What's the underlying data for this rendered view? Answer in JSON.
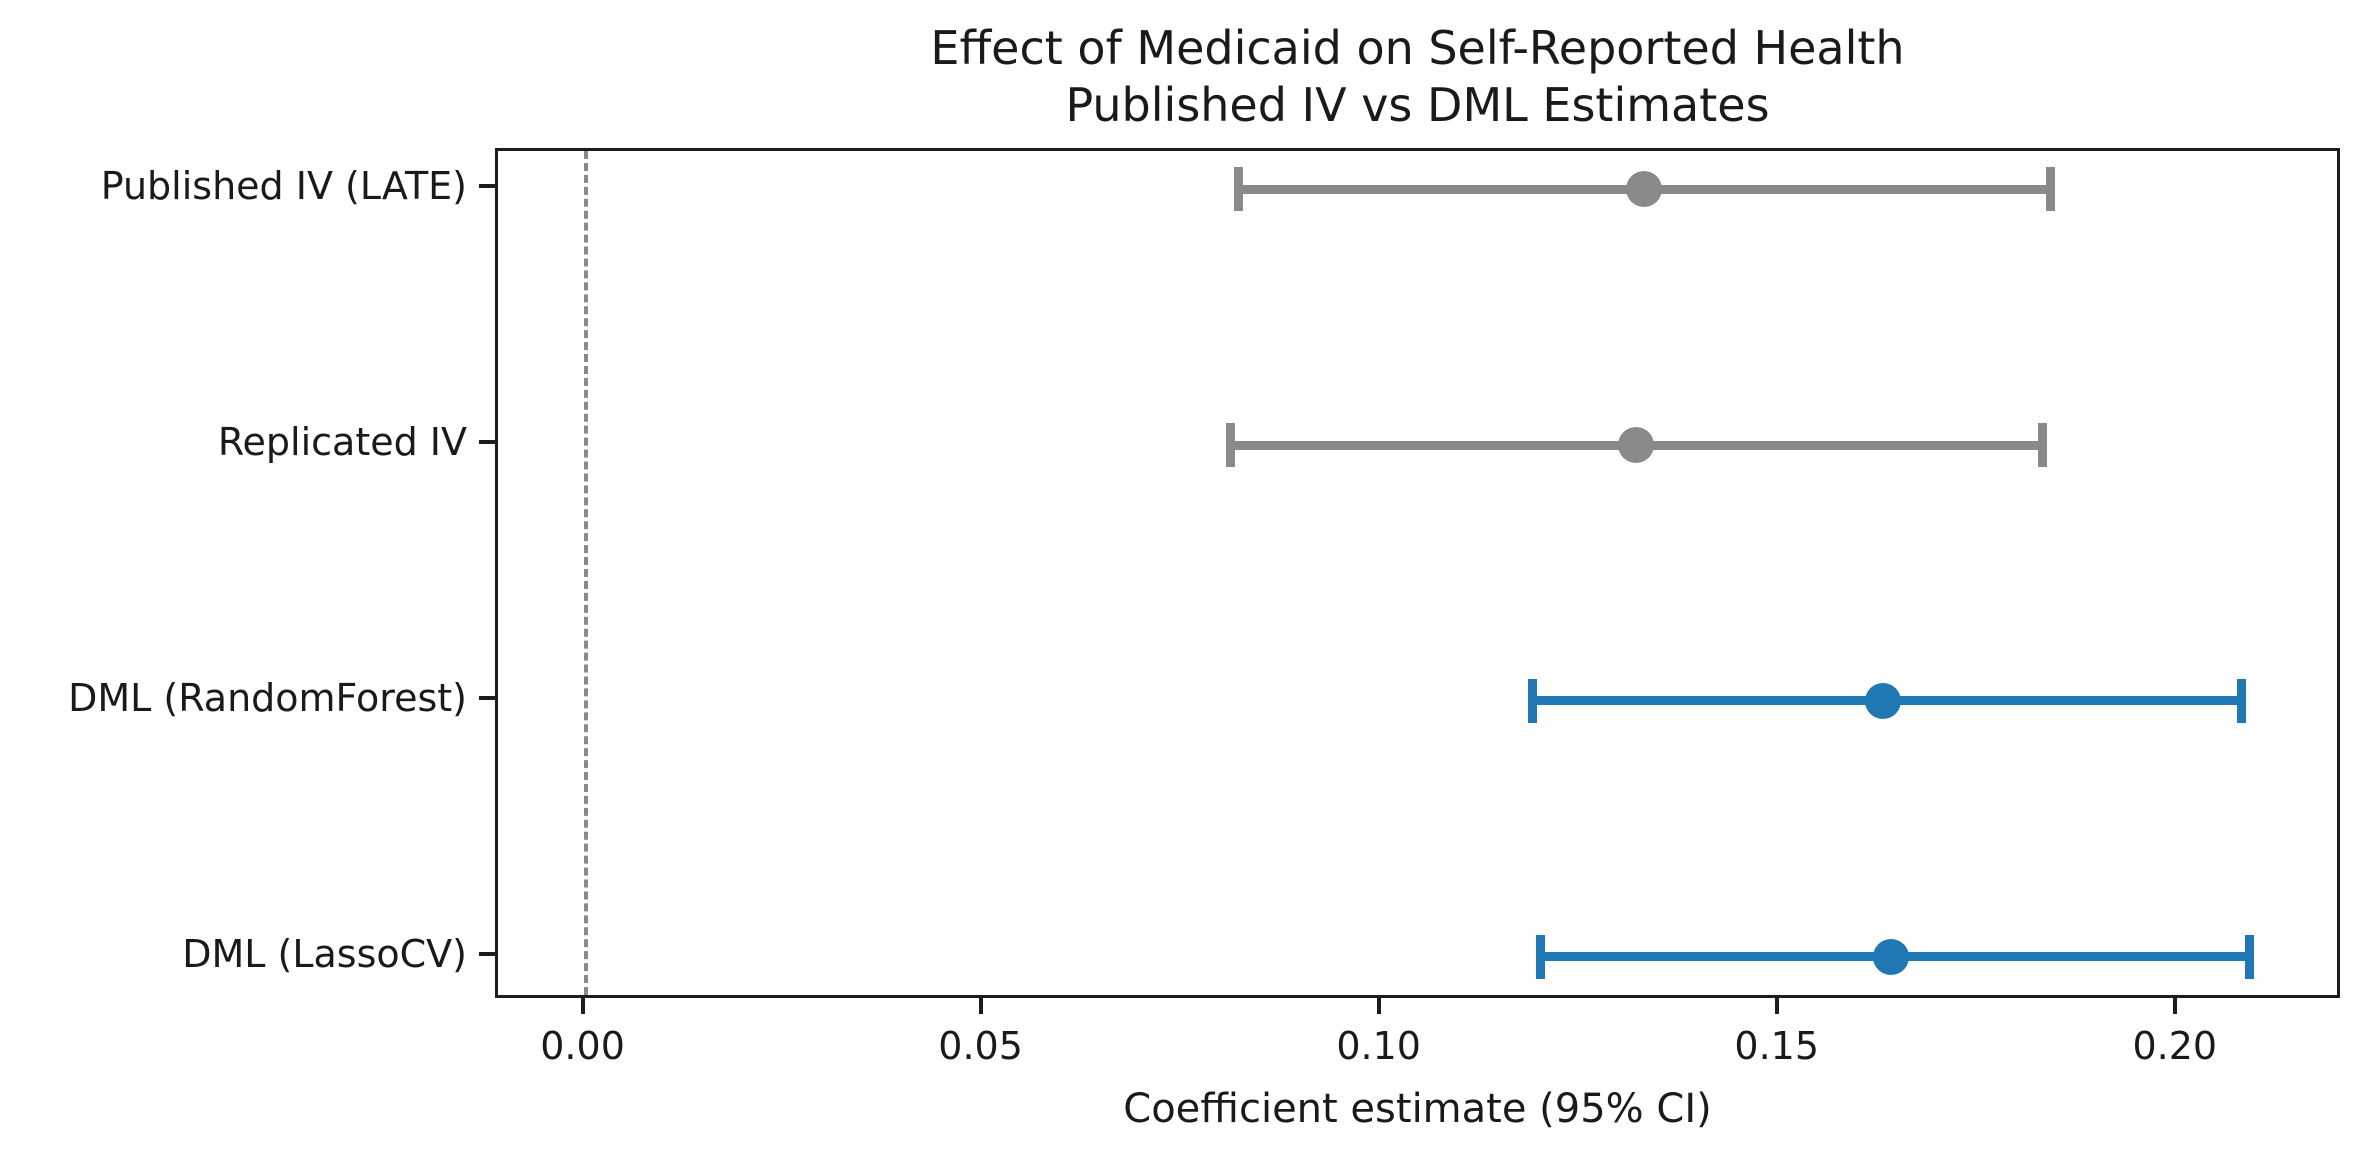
{
  "figure": {
    "title_line1": "Effect of Medicaid on Self-Reported Health",
    "title_line2": "Published IV vs DML Estimates",
    "xlabel": "Coefficient estimate (95% CI)"
  },
  "chart_data": {
    "type": "scatter",
    "subtype": "horizontal-errorbar-forest-plot",
    "title": "Effect of Medicaid on Self-Reported Health\nPublished IV vs DML Estimates",
    "xlabel": "Coefficient estimate (95% CI)",
    "ylabel": "",
    "grid": false,
    "legend": "none",
    "xlim": [
      -0.011,
      0.22
    ],
    "ylim_margin": 0.15,
    "xticks": [
      0.0,
      0.05,
      0.1,
      0.15,
      0.2
    ],
    "xtick_labels": [
      "0.00",
      "0.05",
      "0.10",
      "0.15",
      "0.20"
    ],
    "zero_line": {
      "x": 0.0,
      "style": "dashed",
      "color": "#8a8a8a"
    },
    "categories": [
      "Published IV (LATE)",
      "Replicated IV",
      "DML (RandomForest)",
      "DML (LassoCV)"
    ],
    "points": [
      {
        "label": "Published IV (LATE)",
        "estimate": 0.133,
        "ci_low": 0.082,
        "ci_high": 0.184,
        "group": "IV",
        "color": "#8a8a8a"
      },
      {
        "label": "Replicated IV",
        "estimate": 0.132,
        "ci_low": 0.081,
        "ci_high": 0.183,
        "group": "IV",
        "color": "#8a8a8a"
      },
      {
        "label": "DML (RandomForest)",
        "estimate": 0.163,
        "ci_low": 0.119,
        "ci_high": 0.208,
        "group": "DML",
        "color": "#1f77b4"
      },
      {
        "label": "DML (LassoCV)",
        "estimate": 0.164,
        "ci_low": 0.12,
        "ci_high": 0.209,
        "group": "DML",
        "color": "#1f77b4"
      }
    ],
    "colors": {
      "iv_gray": "#8a8a8a",
      "dml_blue": "#1f77b4",
      "axis": "#1c1c1c"
    }
  }
}
